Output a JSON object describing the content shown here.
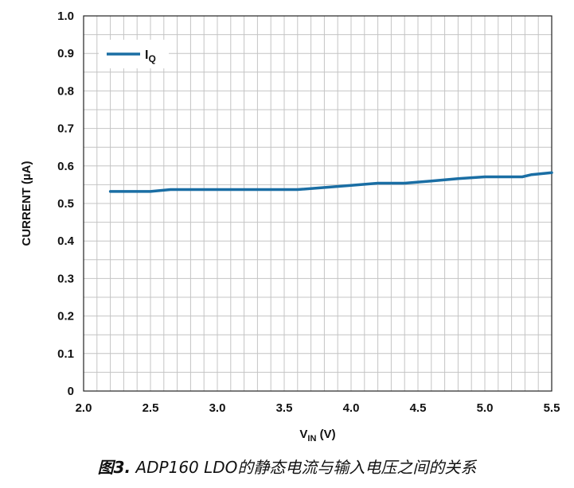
{
  "chart_data": {
    "type": "line",
    "xlabel_main": "V",
    "xlabel_sub": "IN",
    "xlabel_unit": " (V)",
    "ylabel": "CURRENT (µA)",
    "xlim": [
      2.0,
      5.5
    ],
    "ylim": [
      0,
      1.0
    ],
    "x_ticks": [
      "2.0",
      "2.5",
      "3.0",
      "3.5",
      "4.0",
      "4.5",
      "5.0",
      "5.5"
    ],
    "y_ticks": [
      "0",
      "0.1",
      "0.2",
      "0.3",
      "0.4",
      "0.5",
      "0.6",
      "0.7",
      "0.8",
      "0.9",
      "1.0"
    ],
    "grid": true,
    "legend_position": "top-left",
    "series": [
      {
        "name_main": "I",
        "name_sub": "Q",
        "color": "#1a6ea4",
        "x": [
          2.2,
          2.5,
          2.65,
          3.0,
          3.6,
          4.0,
          4.2,
          4.4,
          4.6,
          4.8,
          5.0,
          5.28,
          5.35,
          5.5
        ],
        "y": [
          0.532,
          0.532,
          0.537,
          0.537,
          0.537,
          0.548,
          0.554,
          0.554,
          0.56,
          0.566,
          0.571,
          0.571,
          0.577,
          0.582
        ]
      }
    ]
  },
  "caption": {
    "figure_label": "图3.",
    "text": " ADP160 LDO的静态电流与输入电压之间的关系"
  }
}
